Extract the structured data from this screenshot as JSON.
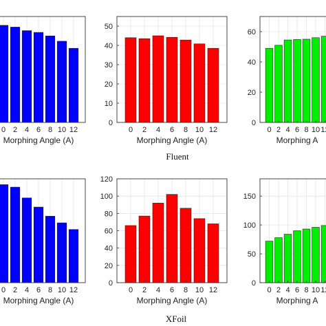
{
  "figure": {
    "captions": [
      "Fluent",
      "XFoil"
    ]
  },
  "chart_data": [
    {
      "type": "bar",
      "group": "Fluent",
      "categories": [
        "0",
        "2",
        "4",
        "6",
        "8",
        "10",
        "12"
      ],
      "values": [
        55,
        54,
        52,
        51,
        49,
        46,
        42
      ],
      "ylim": [
        0,
        60
      ],
      "yticks": [],
      "xlabel": "Morphing Angle (A)",
      "color": "#0000ff",
      "grid": true
    },
    {
      "type": "bar",
      "group": "Fluent",
      "categories": [
        "0",
        "2",
        "4",
        "6",
        "8",
        "10",
        "12"
      ],
      "values": [
        44,
        43.5,
        45,
        44.2,
        42.8,
        40.8,
        38.5
      ],
      "ylim": [
        0,
        55
      ],
      "yticks": [
        0,
        10,
        20,
        30,
        40,
        50
      ],
      "xlabel": "Morphing Angle (A)",
      "color": "#ff0000",
      "grid": true
    },
    {
      "type": "bar",
      "group": "Fluent",
      "categories": [
        "0",
        "2",
        "4",
        "6",
        "8",
        "10",
        "12"
      ],
      "values": [
        49,
        51,
        54.5,
        54.8,
        55,
        56,
        57
      ],
      "ylim": [
        0,
        70
      ],
      "yticks": [
        0,
        20,
        40,
        60
      ],
      "xlabel": "Morphing A",
      "color": "#00ee00",
      "grid": true
    },
    {
      "type": "bar",
      "group": "XFoil",
      "categories": [
        "0",
        "2",
        "4",
        "6",
        "8",
        "10",
        "12"
      ],
      "values": [
        118,
        115,
        102,
        91,
        80,
        72,
        64
      ],
      "ylim": [
        0,
        125
      ],
      "yticks": [],
      "xlabel": "Morphing Angle (A)",
      "color": "#0000ff",
      "grid": true
    },
    {
      "type": "bar",
      "group": "XFoil",
      "categories": [
        "0",
        "2",
        "4",
        "6",
        "8",
        "10",
        "12"
      ],
      "values": [
        66,
        77,
        92,
        102,
        86,
        74,
        68
      ],
      "ylim": [
        0,
        120
      ],
      "yticks": [
        0,
        20,
        40,
        60,
        80,
        100,
        120
      ],
      "xlabel": "Morphing Angle (A)",
      "color": "#ff0000",
      "grid": true
    },
    {
      "type": "bar",
      "group": "XFoil",
      "categories": [
        "0",
        "2",
        "4",
        "6",
        "8",
        "10",
        "12"
      ],
      "values": [
        72,
        78,
        84,
        90,
        93,
        96,
        99
      ],
      "ylim": [
        0,
        180
      ],
      "yticks": [
        0,
        50,
        100,
        150
      ],
      "xlabel": "Morphing A",
      "color": "#00ee00",
      "grid": true
    }
  ]
}
